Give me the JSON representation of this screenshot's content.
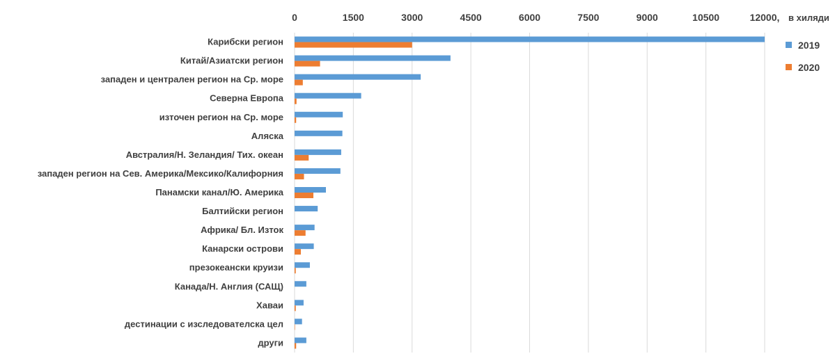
{
  "chart_data": {
    "type": "bar",
    "orientation": "horizontal",
    "axis_position": "top",
    "x_unit_label": "в хиляди",
    "xlim": [
      0,
      12000
    ],
    "x_ticks": [
      "0",
      "1500",
      "3000",
      "4500",
      "6000",
      "7500",
      "9000",
      "10500",
      "12000,"
    ],
    "grid": true,
    "legend_position": "right",
    "categories": [
      "Карибски регион",
      "Китай/Азиатски регион",
      "западен и централен регион на Ср. море",
      "Северна Европа",
      "източен регион на Ср. море",
      "Аляска",
      "Австралия/Н. Зеландия/ Тих. океан",
      "западен регион на Сев. Америка/Мексико/Калифорния",
      "Панамски канал/Ю. Америка",
      "Балтийски регион",
      "Африка/ Бл. Изток",
      "Канарски острови",
      "презокеански круизи",
      "Канада/Н. Англия (САЩ)",
      "Хаваи",
      "дестинации с изследователска цел",
      "други"
    ],
    "series": [
      {
        "name": "2019",
        "color": "#5B9BD5",
        "values": [
          12000,
          3980,
          3220,
          1700,
          1230,
          1220,
          1190,
          1170,
          800,
          590,
          510,
          490,
          390,
          300,
          230,
          190,
          300
        ]
      },
      {
        "name": "2020",
        "color": "#ED7D31",
        "values": [
          3000,
          650,
          210,
          50,
          40,
          0,
          360,
          240,
          480,
          0,
          280,
          160,
          30,
          0,
          30,
          10,
          40
        ]
      }
    ]
  }
}
